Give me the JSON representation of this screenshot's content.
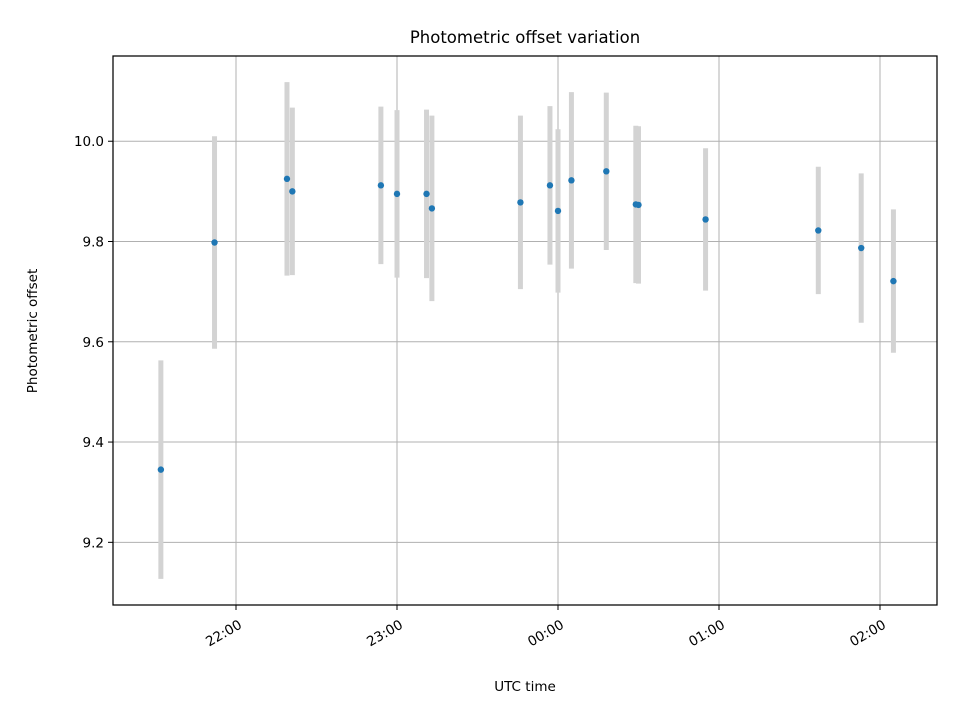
{
  "chart_data": {
    "type": "scatter",
    "title": "Photometric offset variation",
    "xlabel": "UTC time",
    "ylabel": "Photometric offset",
    "x_ticks": [
      "22:00",
      "23:00",
      "00:00",
      "01:00",
      "02:00"
    ],
    "y_ticks": [
      "9.2",
      "9.4",
      "9.6",
      "9.8",
      "10.0"
    ],
    "ylim": [
      9.075,
      10.17
    ],
    "grid": true,
    "colors": {
      "marker": "#1f77b4",
      "errorbar": "#d3d3d3",
      "grid": "#b0b0b0"
    },
    "points": [
      {
        "x": "21:32",
        "y": 9.345,
        "err": 0.218
      },
      {
        "x": "21:52",
        "y": 9.798,
        "err": 0.212
      },
      {
        "x": "22:19",
        "y": 9.925,
        "err": 0.193
      },
      {
        "x": "22:21",
        "y": 9.9,
        "err": 0.167
      },
      {
        "x": "22:54",
        "y": 9.912,
        "err": 0.157
      },
      {
        "x": "23:00",
        "y": 9.895,
        "err": 0.167
      },
      {
        "x": "23:11",
        "y": 9.895,
        "err": 0.168
      },
      {
        "x": "23:13",
        "y": 9.866,
        "err": 0.185
      },
      {
        "x": "23:46",
        "y": 9.878,
        "err": 0.173
      },
      {
        "x": "23:57",
        "y": 9.912,
        "err": 0.158
      },
      {
        "x": "00:00",
        "y": 9.861,
        "err": 0.163
      },
      {
        "x": "00:05",
        "y": 9.922,
        "err": 0.176
      },
      {
        "x": "00:18",
        "y": 9.94,
        "err": 0.157
      },
      {
        "x": "00:29",
        "y": 9.874,
        "err": 0.157
      },
      {
        "x": "00:30",
        "y": 9.873,
        "err": 0.157
      },
      {
        "x": "00:55",
        "y": 9.844,
        "err": 0.142
      },
      {
        "x": "01:37",
        "y": 9.822,
        "err": 0.127
      },
      {
        "x": "01:53",
        "y": 9.787,
        "err": 0.149
      },
      {
        "x": "02:05",
        "y": 9.721,
        "err": 0.143
      }
    ]
  }
}
